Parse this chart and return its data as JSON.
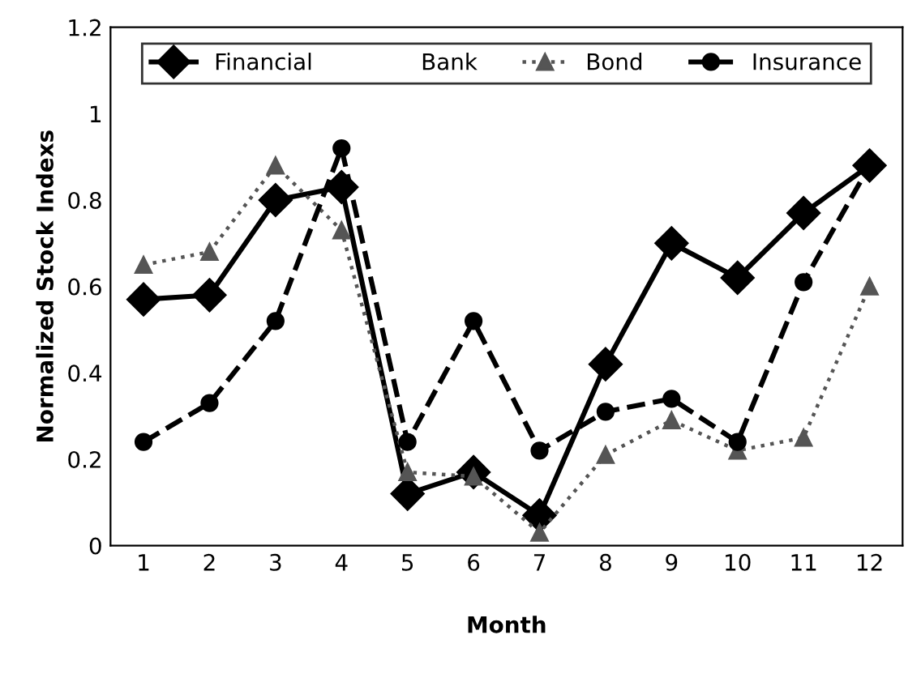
{
  "chart_data": {
    "type": "line",
    "xlabel": "Month",
    "ylabel": "Normalized Stock Indexs",
    "categories": [
      "1",
      "2",
      "3",
      "4",
      "5",
      "6",
      "7",
      "8",
      "9",
      "10",
      "11",
      "12"
    ],
    "series": [
      {
        "name": "Financial",
        "color": "#000000",
        "marker": "diamond",
        "line_style": "solid",
        "values": [
          0.57,
          0.58,
          0.8,
          0.83,
          0.12,
          0.17,
          0.07,
          0.42,
          0.7,
          0.62,
          0.77,
          0.88
        ]
      },
      {
        "name": "Bank",
        "marker": "none",
        "line_style": "solid",
        "values": [
          null,
          null,
          null,
          null,
          null,
          null,
          null,
          null,
          null,
          null,
          null,
          null
        ]
      },
      {
        "name": "Bond",
        "color": "#555555",
        "marker": "triangle",
        "line_style": "dotted",
        "values": [
          0.65,
          0.68,
          0.88,
          0.73,
          0.17,
          0.16,
          0.03,
          0.21,
          0.29,
          0.22,
          0.25,
          0.6
        ]
      },
      {
        "name": "Insurance",
        "color": "#000000",
        "marker": "circle",
        "line_style": "dashed",
        "values": [
          0.24,
          0.33,
          0.52,
          0.92,
          0.24,
          0.52,
          0.22,
          0.31,
          0.34,
          0.24,
          0.61,
          0.88
        ]
      }
    ],
    "ylim": [
      0,
      1.2
    ],
    "yticks": [
      0,
      0.2,
      0.4,
      0.6,
      0.8,
      1,
      1.2
    ],
    "grid": false,
    "legend": "top"
  }
}
